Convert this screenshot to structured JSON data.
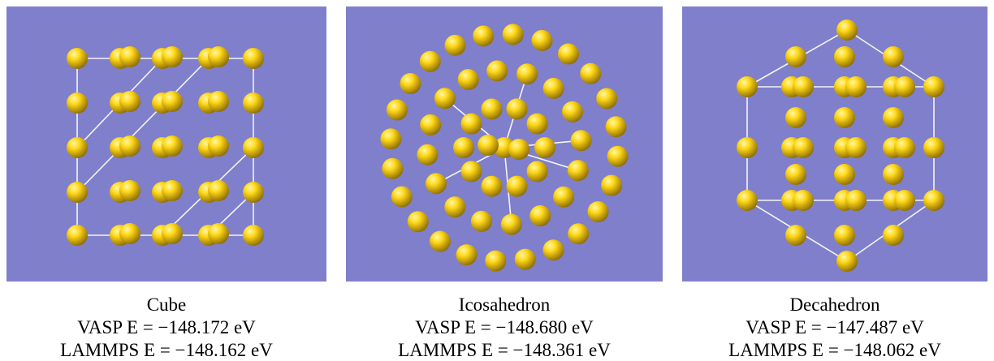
{
  "figure": {
    "panels": [
      {
        "name": "Cube",
        "vasp": "VASP E = −148.172 eV",
        "lammps": "LAMMPS E = −148.162 eV"
      },
      {
        "name": "Icosahedron",
        "vasp": "VASP E = −148.680 eV",
        "lammps": "LAMMPS E = −148.361 eV"
      },
      {
        "name": "Decahedron",
        "vasp": "VASP E = −147.487 eV",
        "lammps": "LAMMPS E = −148.062 eV"
      }
    ]
  }
}
